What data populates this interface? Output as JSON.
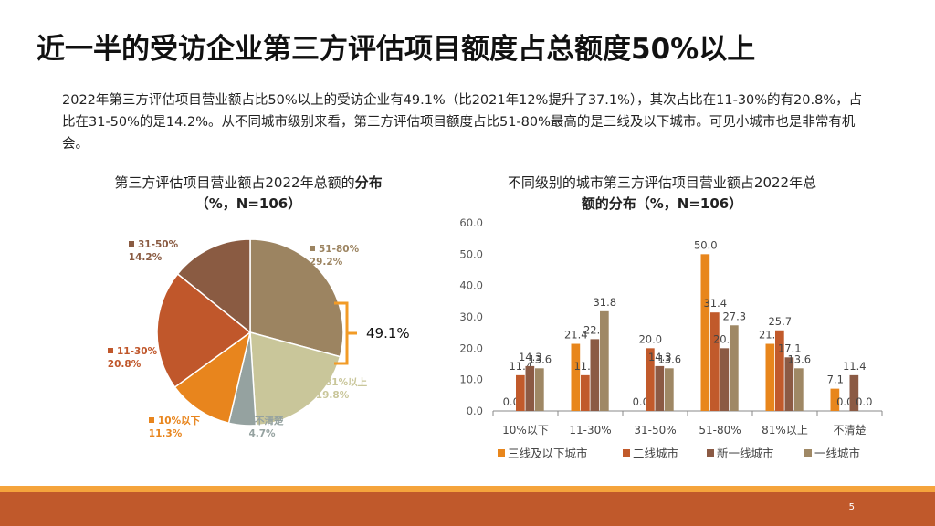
{
  "slide": {
    "title": "近一半的受访企业第三方评估项目额度占总额度50%以上",
    "intro": "2022年第三方评估项目营业额占比50%以上的受访企业有49.1%（比2021年12%提升了37.1%），其次占比在11-30%的有20.8%，占比在31-50%的是14.2%。从不同城市级别来看，第三方评估项目额度占比51-80%最高的是三线及以下城市。可见小城市也是非常有机会。",
    "page_number": "5"
  },
  "colors": {
    "c51_80": "#9c8461",
    "c81": "#c9c69a",
    "cunclear": "#95a2a0",
    "c10": "#e8851d",
    "c11_30": "#c0572b",
    "c31_50": "#8a5b42",
    "s1": "#e8861c",
    "s2": "#c15a2b",
    "s3": "#8b5a44",
    "s4": "#9f8865",
    "bracket": "#f29b26",
    "axis": "#888888",
    "footer_orange": "#f5a43c",
    "footer_rust": "#c0592b"
  },
  "chart_data": [
    {
      "type": "pie",
      "title_line1": "第三方评估项目营业额占2022年总额的",
      "title_bold": "分布",
      "title_line2": "（%，N=106）",
      "slices": [
        {
          "label": "51-80%",
          "value": 29.2,
          "value_label": "29.2%",
          "color": "#9c8461"
        },
        {
          "label": "81%以上",
          "value": 19.8,
          "value_label": "19.8%",
          "color": "#c9c69a"
        },
        {
          "label": "不清楚",
          "value": 4.7,
          "value_label": "4.7%",
          "color": "#95a2a0"
        },
        {
          "label": "10%以下",
          "value": 11.3,
          "value_label": "11.3%",
          "color": "#e8851d"
        },
        {
          "label": "11-30%",
          "value": 20.8,
          "value_label": "20.8%",
          "color": "#c0572b"
        },
        {
          "label": "31-50%",
          "value": 14.2,
          "value_label": "14.2%",
          "color": "#8a5b42"
        }
      ],
      "annotation": "49.1%"
    },
    {
      "type": "bar",
      "title_line1": "不同级别的城市第三方评估项目营业额占2022年总",
      "title_line2": "额的分布（%，N=106）",
      "categories": [
        "10%以下",
        "11-30%",
        "31-50%",
        "51-80%",
        "81%以上",
        "不清楚"
      ],
      "series": [
        {
          "name": "三线及以下城市",
          "values": [
            0.0,
            21.4,
            0.0,
            50.0,
            21.4,
            7.1
          ]
        },
        {
          "name": "二线城市",
          "values": [
            11.4,
            11.4,
            20.0,
            31.4,
            25.7,
            0.0
          ]
        },
        {
          "name": "新一线城市",
          "values": [
            14.3,
            22.9,
            14.3,
            20.0,
            17.1,
            11.4
          ]
        },
        {
          "name": "一线城市",
          "values": [
            13.6,
            31.8,
            13.6,
            27.3,
            13.6,
            0.0
          ]
        }
      ],
      "ylim": [
        0,
        60
      ],
      "yticks": [
        "0.0",
        "10.0",
        "20.0",
        "30.0",
        "40.0",
        "50.0",
        "60.0"
      ]
    }
  ]
}
